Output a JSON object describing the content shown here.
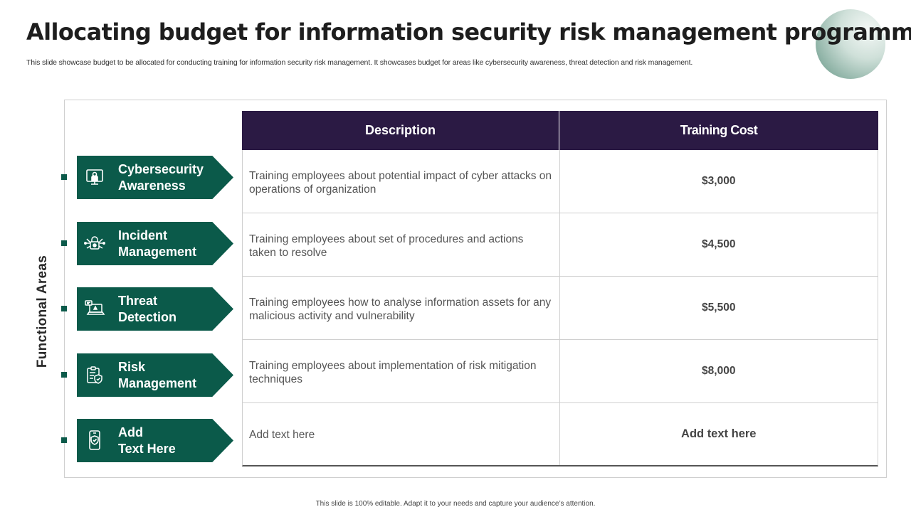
{
  "slide": {
    "title": "Allocating budget for information security risk management programme",
    "subtitle": "This slide showcase budget to be allocated for conducting training for information security risk management. It showcases budget for areas like cybersecurity awareness, threat detection and risk management.",
    "side_label": "Functional Areas",
    "footer": "This slide is 100% editable.  Adapt it to your needs and capture your audience’s attention."
  },
  "colors": {
    "accent": "#0b5a4a",
    "header": "#2b1a44"
  },
  "table": {
    "headers": [
      "Description",
      "Training Cost"
    ],
    "rows": [
      {
        "area": "Cybersecurity Awareness",
        "area_lines": [
          "Cybersecurity",
          "Awareness"
        ],
        "icon": "hacker-screen-icon",
        "description": "Training employees about potential impact of cyber attacks on operations of organization",
        "cost": "$3,000"
      },
      {
        "area": "Incident Management",
        "area_lines": [
          "Incident",
          "Management"
        ],
        "icon": "padlock-network-icon",
        "description": "Training employees about set of procedures and actions taken to resolve",
        "cost": "$4,500"
      },
      {
        "area": "Threat Detection",
        "area_lines": [
          "Threat",
          "Detection"
        ],
        "icon": "laptop-alert-icon",
        "description": "Training employees how to analyse information assets for any malicious activity and vulnerability",
        "cost": "$5,500"
      },
      {
        "area": "Risk Management",
        "area_lines": [
          "Risk",
          "Management"
        ],
        "icon": "clipboard-shield-icon",
        "description": "Training employees about implementation of risk mitigation techniques",
        "cost": "$8,000"
      },
      {
        "area": "Add Text Here",
        "area_lines": [
          "Add",
          "Text Here"
        ],
        "icon": "mobile-shield-icon",
        "description": "Add text here",
        "cost": "Add text here"
      }
    ]
  }
}
